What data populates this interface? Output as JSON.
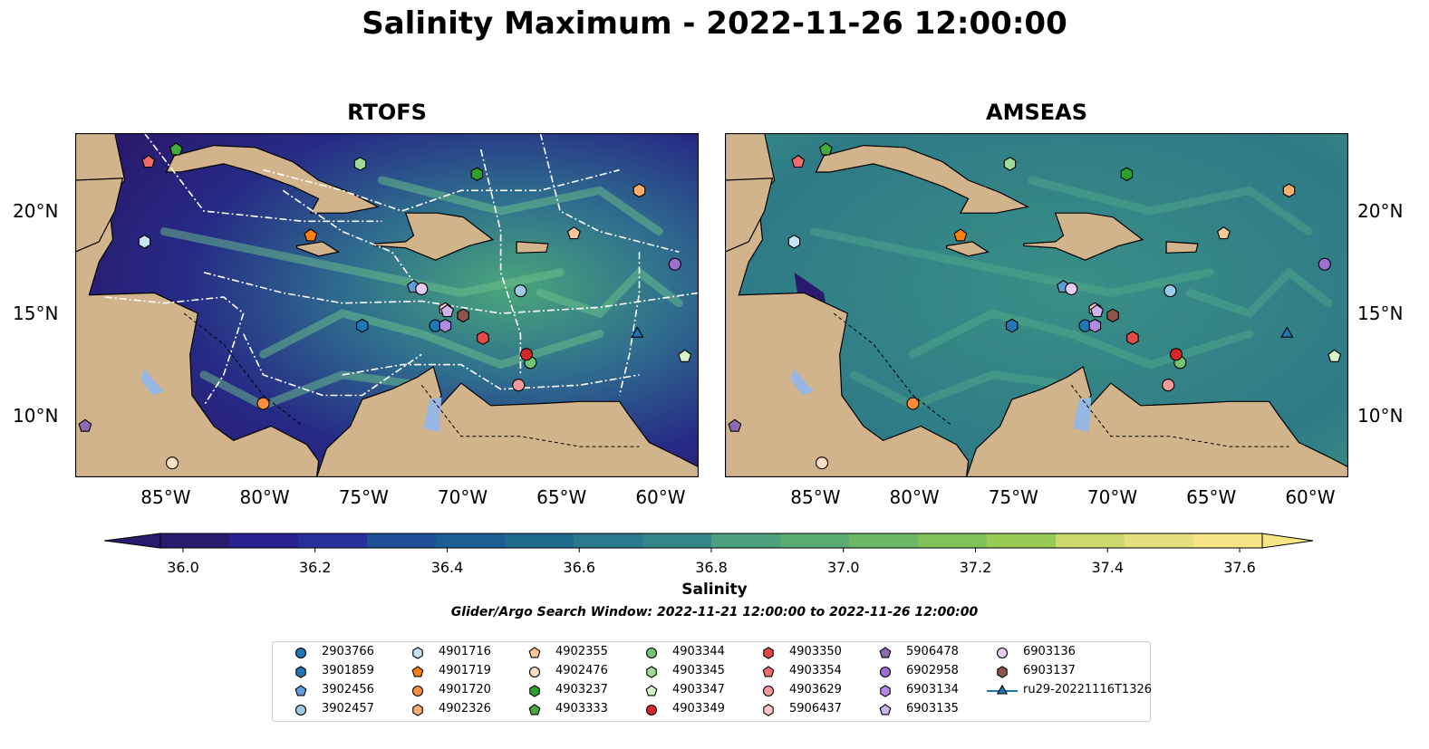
{
  "figure": {
    "title": "Salinity Maximum - 2022-11-26 12:00:00",
    "panels": [
      {
        "title": "RTOFS"
      },
      {
        "title": "AMSEAS"
      }
    ],
    "lon_labels": [
      "85°W",
      "80°W",
      "75°W",
      "70°W",
      "65°W",
      "60°W"
    ],
    "lat_labels": [
      "20°N",
      "15°N",
      "10°N"
    ],
    "extent": {
      "lon": [
        -89.5,
        -58.0
      ],
      "lat": [
        7.0,
        23.8
      ]
    },
    "colorbar": {
      "label": "Salinity",
      "ticks": [
        "36.0",
        "36.2",
        "36.4",
        "36.6",
        "36.8",
        "37.0",
        "37.2",
        "37.4",
        "37.6"
      ],
      "range": [
        36.0,
        37.6
      ],
      "extend": "both",
      "colormap": "haline"
    },
    "search_window": "Glider/Argo Search Window: 2022-11-21 12:00:00 to 2022-11-26 12:00:00"
  },
  "colors": {
    "land": "#d2b48c",
    "water_low": "#2a1a6e",
    "water_mid": "#2f7d8a",
    "water_high": "#f5e37a",
    "lakes": "#97b6e1",
    "eez_lines": "#ffffff"
  },
  "legend": {
    "items": [
      {
        "id": "2903766",
        "marker": "circle",
        "color": "#1f77b4"
      },
      {
        "id": "3901859",
        "marker": "hexagon",
        "color": "#1f77b4"
      },
      {
        "id": "3902456",
        "marker": "pentagon",
        "color": "#5e9fd8"
      },
      {
        "id": "3902457",
        "marker": "circle",
        "color": "#9ecae9"
      },
      {
        "id": "4901716",
        "marker": "hexagon",
        "color": "#c6e2f7"
      },
      {
        "id": "4901719",
        "marker": "pentagon",
        "color": "#ff7f0e"
      },
      {
        "id": "4901720",
        "marker": "circle",
        "color": "#fd8d3c"
      },
      {
        "id": "4902326",
        "marker": "hexagon",
        "color": "#fdae6b"
      },
      {
        "id": "4902355",
        "marker": "pentagon",
        "color": "#fdc896"
      },
      {
        "id": "4902476",
        "marker": "circle",
        "color": "#fde0c5"
      },
      {
        "id": "4903237",
        "marker": "hexagon",
        "color": "#2ca02c"
      },
      {
        "id": "4903333",
        "marker": "pentagon",
        "color": "#41ab3d"
      },
      {
        "id": "4903344",
        "marker": "circle",
        "color": "#74c476"
      },
      {
        "id": "4903345",
        "marker": "hexagon",
        "color": "#a1d99b"
      },
      {
        "id": "4903347",
        "marker": "pentagon",
        "color": "#d5f5c8"
      },
      {
        "id": "4903349",
        "marker": "circle",
        "color": "#d62728"
      },
      {
        "id": "4903350",
        "marker": "hexagon",
        "color": "#e34a4a"
      },
      {
        "id": "4903354",
        "marker": "pentagon",
        "color": "#f06b6b"
      },
      {
        "id": "4903629",
        "marker": "circle",
        "color": "#f59a9a"
      },
      {
        "id": "5906437",
        "marker": "hexagon",
        "color": "#fcc5c5"
      },
      {
        "id": "5906478",
        "marker": "pentagon",
        "color": "#8c6bb1"
      },
      {
        "id": "6902958",
        "marker": "circle",
        "color": "#9e6fd3"
      },
      {
        "id": "6903134",
        "marker": "hexagon",
        "color": "#b28be0"
      },
      {
        "id": "6903135",
        "marker": "pentagon",
        "color": "#cdb3ef"
      },
      {
        "id": "6903136",
        "marker": "circle",
        "color": "#e6ccf7"
      },
      {
        "id": "6903137",
        "marker": "hexagon",
        "color": "#8c564b"
      },
      {
        "id": "ru29-20221116T1326",
        "marker": "triangle-line",
        "color": "#1f77b4"
      }
    ]
  },
  "observations": [
    {
      "id": "2903766",
      "lon": -71.3,
      "lat": 14.4
    },
    {
      "id": "3901859",
      "lon": -75.0,
      "lat": 14.4
    },
    {
      "id": "3902456",
      "lon": -72.4,
      "lat": 16.3
    },
    {
      "id": "3902457",
      "lon": -67.0,
      "lat": 16.1
    },
    {
      "id": "4901716",
      "lon": -86.0,
      "lat": 18.5
    },
    {
      "id": "4901719",
      "lon": -77.6,
      "lat": 18.8
    },
    {
      "id": "4901720",
      "lon": -80.0,
      "lat": 10.6
    },
    {
      "id": "4902326",
      "lon": -61.0,
      "lat": 21.0
    },
    {
      "id": "4902355",
      "lon": -64.3,
      "lat": 18.9
    },
    {
      "id": "4902476",
      "lon": -84.6,
      "lat": 7.7
    },
    {
      "id": "4903237",
      "lon": -69.2,
      "lat": 21.8
    },
    {
      "id": "4903333",
      "lon": -84.4,
      "lat": 23.0
    },
    {
      "id": "4903344",
      "lon": -66.5,
      "lat": 12.6
    },
    {
      "id": "4903345",
      "lon": -75.1,
      "lat": 22.3
    },
    {
      "id": "4903347",
      "lon": -58.7,
      "lat": 12.9
    },
    {
      "id": "4903349",
      "lon": -66.7,
      "lat": 13.0
    },
    {
      "id": "4903350",
      "lon": -68.9,
      "lat": 13.8
    },
    {
      "id": "4903354",
      "lon": -85.8,
      "lat": 22.4
    },
    {
      "id": "4903629",
      "lon": -67.1,
      "lat": 11.5
    },
    {
      "id": "5906437",
      "lon": -70.8,
      "lat": 15.2
    },
    {
      "id": "5906478",
      "lon": -89.0,
      "lat": 9.5
    },
    {
      "id": "6902958",
      "lon": -59.2,
      "lat": 17.4
    },
    {
      "id": "6903134",
      "lon": -70.8,
      "lat": 14.4
    },
    {
      "id": "6903135",
      "lon": -70.7,
      "lat": 15.1
    },
    {
      "id": "6903136",
      "lon": -72.0,
      "lat": 16.2
    },
    {
      "id": "6903137",
      "lon": -69.9,
      "lat": 14.9
    },
    {
      "id": "ru29-20221116T1326",
      "lon": -61.1,
      "lat": 14.0
    }
  ]
}
